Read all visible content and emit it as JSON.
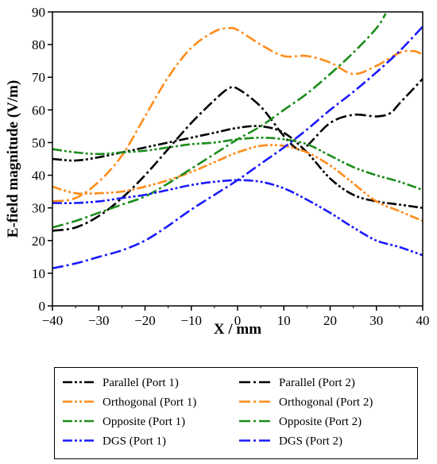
{
  "chart_data": {
    "type": "line",
    "xlabel": "X / mm",
    "ylabel": "E-field magnitude (V/m)",
    "xlim": [
      -40,
      40
    ],
    "ylim": [
      0,
      90
    ],
    "xticks": [
      -40,
      -30,
      -20,
      -10,
      0,
      10,
      20,
      30,
      40
    ],
    "yticks": [
      0,
      10,
      20,
      30,
      40,
      50,
      60,
      70,
      80,
      90
    ],
    "grid": false,
    "legend_position": "below",
    "series": [
      {
        "name": "Parallel (Port 1)",
        "color": "#000000",
        "dash": "dashdotdot",
        "x": [
          -40,
          -35,
          -30,
          -25,
          -20,
          -15,
          -10,
          -5,
          0,
          5,
          10,
          15,
          20,
          25,
          30,
          35,
          40
        ],
        "y": [
          45,
          44.5,
          45.5,
          47,
          48.5,
          50,
          51.5,
          53,
          54.5,
          55,
          53,
          47,
          39,
          34,
          32,
          31,
          30
        ]
      },
      {
        "name": "Parallel (Port 2)",
        "color": "#000000",
        "dash": "dashdot",
        "x": [
          -40,
          -35,
          -30,
          -25,
          -20,
          -15,
          -10,
          -5,
          -2,
          0,
          5,
          10,
          13,
          15,
          20,
          25,
          30,
          33,
          35,
          40
        ],
        "y": [
          23,
          24,
          27.5,
          33,
          40,
          48,
          56,
          63,
          66.5,
          66.5,
          61,
          52,
          48,
          49,
          56,
          58.5,
          58,
          59,
          62,
          69.5
        ]
      },
      {
        "name": "Orthogonal (Port 1)",
        "color": "#ff8c1a",
        "dash": "dashdotdot",
        "x": [
          -40,
          -35,
          -30,
          -25,
          -20,
          -15,
          -10,
          -5,
          0,
          5,
          10,
          15,
          20,
          25,
          30,
          35,
          40
        ],
        "y": [
          36.5,
          34.5,
          34.5,
          35,
          36.5,
          38.5,
          41,
          44,
          47,
          49,
          49,
          47,
          43,
          37.5,
          32,
          29,
          26
        ]
      },
      {
        "name": "Orthogonal (Port 2)",
        "color": "#ff8c1a",
        "dash": "dashdot",
        "x": [
          -40,
          -35,
          -30,
          -25,
          -20,
          -15,
          -10,
          -5,
          -2,
          0,
          5,
          10,
          15,
          20,
          25,
          30,
          35,
          38,
          40
        ],
        "y": [
          32,
          33,
          38,
          46,
          58,
          70,
          79,
          84,
          85,
          84.5,
          80,
          76.5,
          76.5,
          74.5,
          71,
          73.5,
          77.5,
          78,
          77
        ]
      },
      {
        "name": "Opposite (Port 1)",
        "color": "#1a8c1a",
        "dash": "dashdotdot",
        "x": [
          -40,
          -35,
          -30,
          -25,
          -20,
          -15,
          -10,
          -5,
          0,
          5,
          10,
          15,
          20,
          25,
          30,
          35,
          40
        ],
        "y": [
          48,
          47,
          46.5,
          47,
          47.5,
          48.5,
          49.5,
          50,
          51,
          51.5,
          51,
          49.5,
          46,
          42.5,
          40,
          38,
          35.5
        ]
      },
      {
        "name": "Opposite (Port 2)",
        "color": "#1a8c1a",
        "dash": "dashdot",
        "x": [
          -40,
          -35,
          -30,
          -25,
          -20,
          -15,
          -10,
          -5,
          0,
          5,
          10,
          15,
          20,
          25,
          30,
          32
        ],
        "y": [
          24,
          26,
          28.5,
          31,
          33.5,
          37.5,
          42,
          46.5,
          51,
          55,
          60,
          65,
          71,
          77.5,
          85,
          89.5
        ]
      },
      {
        "name": "DGS (Port 1)",
        "color": "#1a1aff",
        "dash": "dashdotdot",
        "x": [
          -40,
          -35,
          -30,
          -25,
          -20,
          -15,
          -10,
          -5,
          0,
          5,
          10,
          15,
          20,
          25,
          30,
          35,
          40
        ],
        "y": [
          31.5,
          31.5,
          32,
          33,
          34,
          35.5,
          37,
          38,
          38.5,
          38,
          36,
          32.5,
          28.5,
          24,
          20,
          18,
          15.5
        ]
      },
      {
        "name": "DGS (Port 2)",
        "color": "#1a1aff",
        "dash": "dashdot",
        "x": [
          -40,
          -35,
          -30,
          -25,
          -20,
          -15,
          -10,
          -5,
          0,
          5,
          10,
          15,
          20,
          25,
          30,
          35,
          40
        ],
        "y": [
          11.5,
          13,
          15,
          17,
          20,
          24.5,
          29.5,
          34,
          38.5,
          43.5,
          48.5,
          54,
          60,
          65.5,
          71.5,
          78,
          85.5
        ]
      }
    ]
  }
}
